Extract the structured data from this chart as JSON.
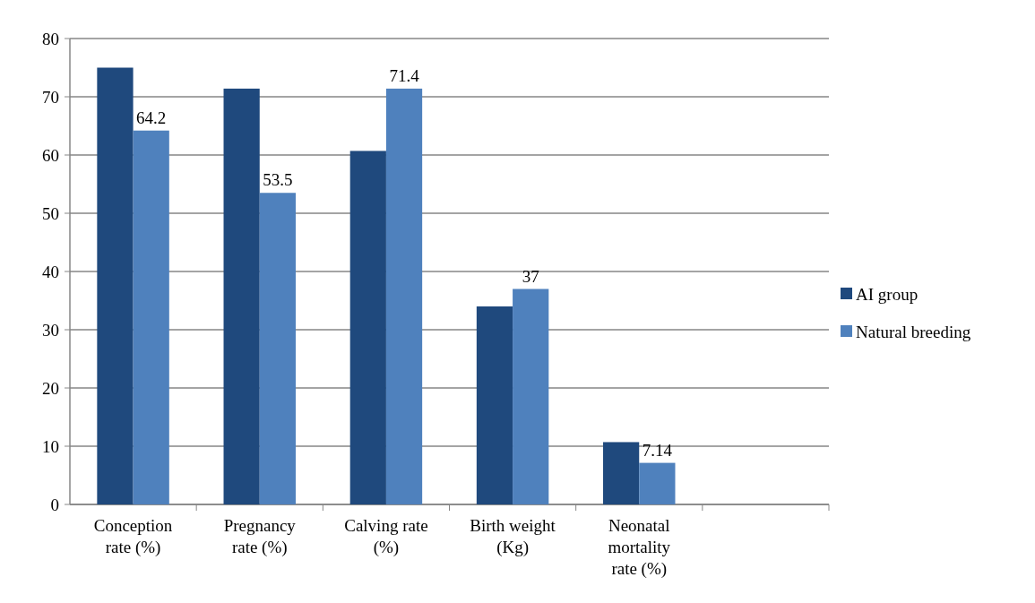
{
  "chart_data": {
    "type": "bar",
    "categories": [
      "Conception rate (%)",
      "Pregnancy rate (%)",
      "Calving rate (%)",
      "Birth weight (Kg)",
      "Neonatal mortality rate (%)",
      null
    ],
    "series": [
      {
        "name": "AI group",
        "color": "#1f497d",
        "values": [
          75,
          71.4,
          60.7,
          34,
          10.7,
          null
        ]
      },
      {
        "name": "Natural breeding",
        "color": "#4f81bd",
        "values": [
          64.2,
          53.5,
          71.4,
          37,
          7.14,
          null
        ],
        "value_labels": [
          "64.2",
          "53.5",
          "71.4",
          "37",
          "7.14",
          null
        ]
      }
    ],
    "ylim": [
      0,
      80
    ],
    "yticks": [
      0,
      10,
      20,
      30,
      40,
      50,
      60,
      70,
      80
    ],
    "grid": "y",
    "legend": "right"
  }
}
